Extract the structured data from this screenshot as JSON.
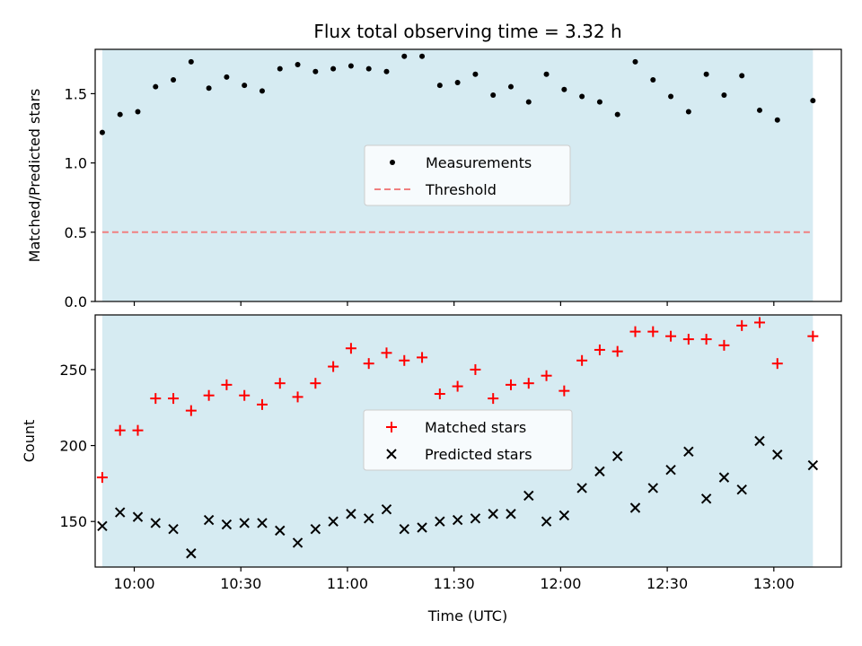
{
  "chart_data": [
    {
      "type": "scatter",
      "title": "Flux total observing time = 3.32 h",
      "xlabel": "",
      "ylabel": "Matched/Predicted stars",
      "ylim": [
        0,
        1.82
      ],
      "yticks": [
        "0.0",
        "0.5",
        "1.0",
        "1.5"
      ],
      "ytick_values": [
        0,
        0.5,
        1.0,
        1.5
      ],
      "observing_window": [
        "09:51",
        "13:11"
      ],
      "observing_window_color": "#add8e6",
      "legend": {
        "position": "center",
        "entries": [
          "Measurements",
          "Threshold"
        ]
      },
      "threshold": {
        "name": "Threshold",
        "value": 0.5,
        "color": "#f08080"
      },
      "series": [
        {
          "name": "Measurements",
          "color": "#000000",
          "x": [
            "09:51",
            "09:56",
            "10:01",
            "10:06",
            "10:11",
            "10:16",
            "10:21",
            "10:26",
            "10:31",
            "10:36",
            "10:41",
            "10:46",
            "10:51",
            "10:56",
            "11:01",
            "11:06",
            "11:11",
            "11:16",
            "11:21",
            "11:26",
            "11:31",
            "11:36",
            "11:41",
            "11:46",
            "11:51",
            "11:56",
            "12:01",
            "12:06",
            "12:11",
            "12:16",
            "12:21",
            "12:26",
            "12:31",
            "12:36",
            "12:41",
            "12:46",
            "12:51",
            "12:56",
            "13:01",
            "13:11"
          ],
          "y": [
            1.22,
            1.35,
            1.37,
            1.55,
            1.6,
            1.73,
            1.54,
            1.62,
            1.56,
            1.52,
            1.68,
            1.71,
            1.66,
            1.68,
            1.7,
            1.68,
            1.66,
            1.77,
            1.77,
            1.56,
            1.58,
            1.64,
            1.49,
            1.55,
            1.44,
            1.64,
            1.53,
            1.48,
            1.44,
            1.35,
            1.73,
            1.6,
            1.48,
            1.37,
            1.64,
            1.49,
            1.63,
            1.38,
            1.31,
            1.45
          ]
        }
      ]
    },
    {
      "type": "scatter",
      "title": "",
      "xlabel": "Time (UTC)",
      "ylabel": "Count",
      "ylim": [
        120,
        286
      ],
      "yticks": [
        "150",
        "200",
        "250"
      ],
      "ytick_values": [
        150,
        200,
        250
      ],
      "xlim": [
        "09:49",
        "13:19"
      ],
      "xticks": [
        "10:00",
        "10:30",
        "11:00",
        "11:30",
        "12:00",
        "12:30",
        "13:00"
      ],
      "observing_window": [
        "09:51",
        "13:11"
      ],
      "observing_window_color": "#add8e6",
      "legend": {
        "position": "center",
        "entries": [
          "Matched stars",
          "Predicted stars"
        ]
      },
      "series": [
        {
          "name": "Matched stars",
          "marker": "plus",
          "color": "#ff0000",
          "x": [
            "09:51",
            "09:56",
            "10:01",
            "10:06",
            "10:11",
            "10:16",
            "10:21",
            "10:26",
            "10:31",
            "10:36",
            "10:41",
            "10:46",
            "10:51",
            "10:56",
            "11:01",
            "11:06",
            "11:11",
            "11:16",
            "11:21",
            "11:26",
            "11:31",
            "11:36",
            "11:41",
            "11:46",
            "11:51",
            "11:56",
            "12:01",
            "12:06",
            "12:11",
            "12:16",
            "12:21",
            "12:26",
            "12:31",
            "12:36",
            "12:41",
            "12:46",
            "12:51",
            "12:56",
            "13:01",
            "13:11"
          ],
          "y": [
            179,
            210,
            210,
            231,
            231,
            223,
            233,
            240,
            233,
            227,
            241,
            232,
            241,
            252,
            264,
            254,
            261,
            256,
            258,
            234,
            239,
            250,
            231,
            240,
            241,
            246,
            236,
            256,
            263,
            262,
            275,
            275,
            272,
            270,
            270,
            266,
            279,
            281,
            254,
            272
          ]
        },
        {
          "name": "Predicted stars",
          "marker": "x",
          "color": "#000000",
          "x": [
            "09:51",
            "09:56",
            "10:01",
            "10:06",
            "10:11",
            "10:16",
            "10:21",
            "10:26",
            "10:31",
            "10:36",
            "10:41",
            "10:46",
            "10:51",
            "10:56",
            "11:01",
            "11:06",
            "11:11",
            "11:16",
            "11:21",
            "11:26",
            "11:31",
            "11:36",
            "11:41",
            "11:46",
            "11:51",
            "11:56",
            "12:01",
            "12:06",
            "12:11",
            "12:16",
            "12:21",
            "12:26",
            "12:31",
            "12:36",
            "12:41",
            "12:46",
            "12:51",
            "12:56",
            "13:01",
            "13:11"
          ],
          "y": [
            147,
            156,
            153,
            149,
            145,
            129,
            151,
            148,
            149,
            149,
            144,
            136,
            145,
            150,
            155,
            152,
            158,
            145,
            146,
            150,
            151,
            152,
            155,
            155,
            167,
            150,
            154,
            172,
            183,
            193,
            159,
            172,
            184,
            196,
            165,
            179,
            171,
            203,
            194,
            187
          ]
        }
      ]
    }
  ]
}
